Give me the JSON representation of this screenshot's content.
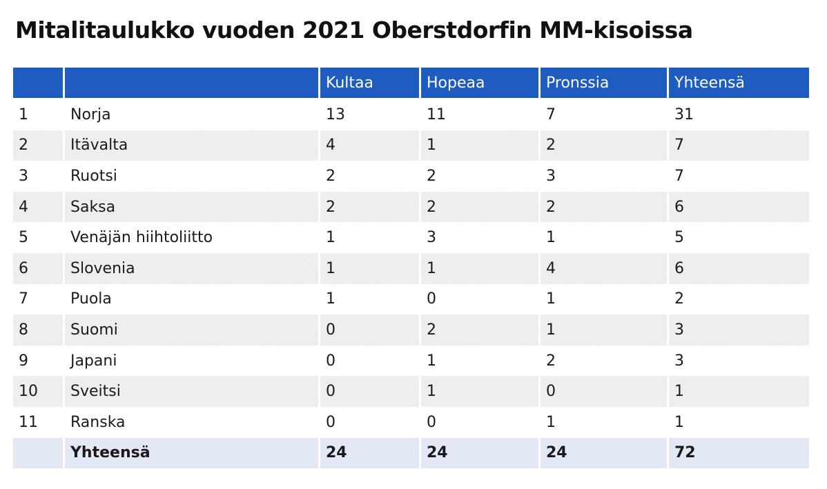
{
  "title": "Mitalitaulukko vuoden 2021 Oberstdorfin MM-kisoissa",
  "colors": {
    "header_bg": "#1f5cc0",
    "header_text": "#ffffff",
    "row_alt_bg": "#f1f1f1",
    "total_row_bg": "#e3e9f4"
  },
  "chart_data": {
    "type": "table",
    "title": "Mitalitaulukko vuoden 2021 Oberstdorfin MM-kisoissa",
    "columns": [
      "",
      "",
      "Kultaa",
      "Hopeaa",
      "Pronssia",
      "Yhteensä"
    ],
    "rows": [
      [
        "1",
        "Norja",
        "13",
        "11",
        "7",
        "31"
      ],
      [
        "2",
        "Itävalta",
        "4",
        "1",
        "2",
        "7"
      ],
      [
        "3",
        "Ruotsi",
        "2",
        "2",
        "3",
        "7"
      ],
      [
        "4",
        "Saksa",
        "2",
        "2",
        "2",
        "6"
      ],
      [
        "5",
        "Venäjän hiihtoliitto",
        "1",
        "3",
        "1",
        "5"
      ],
      [
        "6",
        "Slovenia",
        "1",
        "1",
        "4",
        "6"
      ],
      [
        "7",
        "Puola",
        "1",
        "0",
        "1",
        "2"
      ],
      [
        "8",
        "Suomi",
        "0",
        "2",
        "1",
        "3"
      ],
      [
        "9",
        "Japani",
        "0",
        "1",
        "2",
        "3"
      ],
      [
        "10",
        "Sveitsi",
        "0",
        "1",
        "0",
        "1"
      ],
      [
        "11",
        "Ranska",
        "0",
        "0",
        "1",
        "1"
      ]
    ],
    "total_row": [
      "",
      "Yhteensä",
      "24",
      "24",
      "24",
      "72"
    ]
  }
}
